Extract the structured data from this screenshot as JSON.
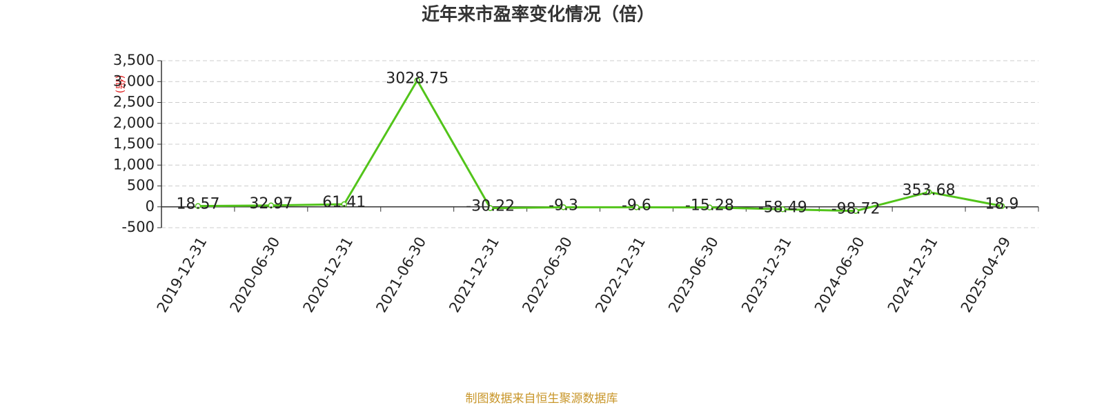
{
  "chart_data": {
    "type": "line",
    "title": "近年来市盈率变化情况（倍）",
    "y_label": "(倍)",
    "source": "制图数据来自恒生聚源数据库",
    "categories": [
      "2019-12-31",
      "2020-06-30",
      "2020-12-31",
      "2021-06-30",
      "2021-12-31",
      "2022-06-30",
      "2022-12-31",
      "2023-06-30",
      "2023-12-31",
      "2024-06-30",
      "2024-12-31",
      "2025-04-29"
    ],
    "series": [
      {
        "name": "市盈率",
        "color": "#52c41a",
        "values": [
          18.57,
          32.97,
          61.41,
          3028.75,
          -30.22,
          -9.3,
          -9.6,
          -15.28,
          -58.49,
          -98.72,
          353.68,
          18.9
        ]
      }
    ],
    "ylim": [
      -500,
      3500
    ],
    "yticks": [
      -500,
      0,
      500,
      {
        "value": 1000,
        "label": "1,000"
      },
      {
        "value": 1500,
        "label": "1,500"
      },
      {
        "value": 2000,
        "label": "2,000"
      },
      {
        "value": 2500,
        "label": "2,500"
      },
      {
        "value": 3000,
        "label": "3,000"
      },
      {
        "value": 3500,
        "label": "3,500"
      }
    ],
    "grid": true
  }
}
